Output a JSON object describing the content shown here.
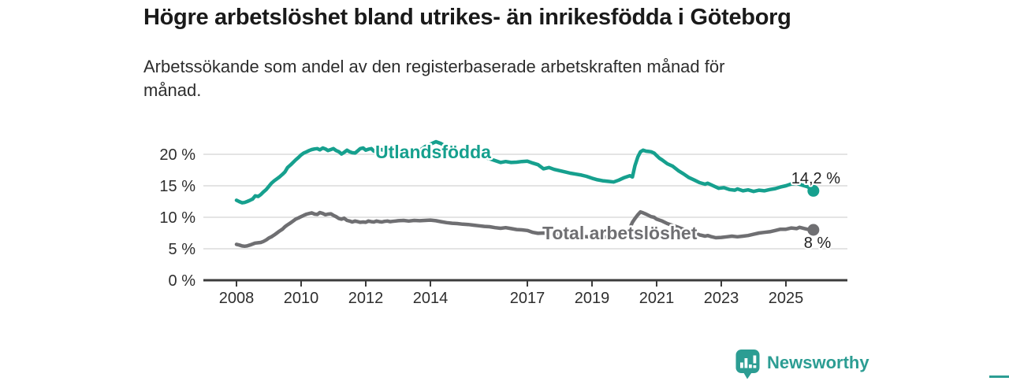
{
  "header": {
    "title": "Högre arbetslöshet bland utrikes- än inrikesfödda i Göteborg",
    "subtitle_line1": "Arbetssökande som andel av den registerbaserade arbetskraften månad för",
    "subtitle_line2": "månad."
  },
  "branding": {
    "logo_text": "Newsworthy",
    "accent_color": "#2C9D93"
  },
  "chart_data": {
    "type": "line",
    "grid": true,
    "legend": "inline-labels",
    "x_axis": {
      "ticks": [
        2008,
        2010,
        2012,
        2014,
        2017,
        2019,
        2021,
        2023,
        2025
      ],
      "range": [
        2007,
        2026.8
      ]
    },
    "y_axis": {
      "ticks": [
        0,
        5,
        10,
        15,
        20
      ],
      "labels": [
        "0 %",
        "5 %",
        "10 %",
        "15 %",
        "20 %"
      ],
      "range": [
        0,
        22
      ],
      "unit": "%"
    },
    "series": [
      {
        "name": "Utlandsfödda",
        "color": "#16A08E",
        "end_label": "14,2 %",
        "end_value": 14.2,
        "points": [
          [
            2008.0,
            12.7
          ],
          [
            2008.08,
            12.5
          ],
          [
            2008.17,
            12.3
          ],
          [
            2008.25,
            12.35
          ],
          [
            2008.33,
            12.5
          ],
          [
            2008.42,
            12.7
          ],
          [
            2008.5,
            12.9
          ],
          [
            2008.58,
            13.4
          ],
          [
            2008.67,
            13.3
          ],
          [
            2008.75,
            13.6
          ],
          [
            2008.83,
            14.0
          ],
          [
            2008.92,
            14.4
          ],
          [
            2009.0,
            14.9
          ],
          [
            2009.08,
            15.4
          ],
          [
            2009.17,
            15.8
          ],
          [
            2009.25,
            16.1
          ],
          [
            2009.33,
            16.4
          ],
          [
            2009.42,
            16.8
          ],
          [
            2009.5,
            17.2
          ],
          [
            2009.58,
            17.9
          ],
          [
            2009.67,
            18.3
          ],
          [
            2009.75,
            18.7
          ],
          [
            2009.83,
            19.1
          ],
          [
            2009.92,
            19.5
          ],
          [
            2010.0,
            19.9
          ],
          [
            2010.08,
            20.2
          ],
          [
            2010.17,
            20.4
          ],
          [
            2010.25,
            20.6
          ],
          [
            2010.33,
            20.75
          ],
          [
            2010.42,
            20.85
          ],
          [
            2010.5,
            20.9
          ],
          [
            2010.58,
            20.7
          ],
          [
            2010.67,
            21.0
          ],
          [
            2010.75,
            20.85
          ],
          [
            2010.83,
            20.6
          ],
          [
            2010.92,
            20.75
          ],
          [
            2011.0,
            20.9
          ],
          [
            2011.08,
            20.6
          ],
          [
            2011.17,
            20.4
          ],
          [
            2011.25,
            20.05
          ],
          [
            2011.33,
            20.3
          ],
          [
            2011.42,
            20.65
          ],
          [
            2011.5,
            20.4
          ],
          [
            2011.58,
            20.25
          ],
          [
            2011.67,
            20.2
          ],
          [
            2011.75,
            20.55
          ],
          [
            2011.83,
            20.9
          ],
          [
            2011.92,
            21.0
          ],
          [
            2012.0,
            20.65
          ],
          [
            2012.08,
            20.8
          ],
          [
            2012.17,
            20.9
          ],
          [
            2012.25,
            20.5
          ],
          [
            2012.33,
            20.4
          ],
          [
            2012.42,
            20.65
          ],
          [
            2012.5,
            20.75
          ],
          [
            2012.58,
            20.5
          ],
          [
            2012.67,
            20.6
          ],
          [
            2012.75,
            20.8
          ],
          [
            2012.83,
            20.7
          ],
          [
            2012.92,
            20.55
          ],
          [
            2013.0,
            20.5
          ],
          [
            2013.17,
            20.65
          ],
          [
            2013.33,
            20.5
          ],
          [
            2013.5,
            20.55
          ],
          [
            2013.67,
            20.6
          ],
          [
            2013.83,
            21.2
          ],
          [
            2014.0,
            21.6
          ],
          [
            2014.17,
            22.0
          ],
          [
            2014.33,
            21.7
          ],
          [
            2014.5,
            21.2
          ],
          [
            2014.67,
            20.8
          ],
          [
            2014.83,
            20.4
          ],
          [
            2015.0,
            20.1
          ],
          [
            2015.17,
            19.95
          ],
          [
            2015.33,
            19.8
          ],
          [
            2015.5,
            19.65
          ],
          [
            2015.67,
            19.5
          ],
          [
            2015.83,
            19.3
          ],
          [
            2016.0,
            19.0
          ],
          [
            2016.17,
            18.7
          ],
          [
            2016.33,
            18.85
          ],
          [
            2016.5,
            18.7
          ],
          [
            2016.67,
            18.75
          ],
          [
            2016.83,
            18.85
          ],
          [
            2017.0,
            18.9
          ],
          [
            2017.17,
            18.6
          ],
          [
            2017.33,
            18.35
          ],
          [
            2017.5,
            17.7
          ],
          [
            2017.67,
            17.9
          ],
          [
            2017.83,
            17.6
          ],
          [
            2018.0,
            17.4
          ],
          [
            2018.17,
            17.2
          ],
          [
            2018.33,
            17.0
          ],
          [
            2018.5,
            16.85
          ],
          [
            2018.67,
            16.7
          ],
          [
            2018.83,
            16.5
          ],
          [
            2019.0,
            16.2
          ],
          [
            2019.17,
            15.95
          ],
          [
            2019.33,
            15.8
          ],
          [
            2019.5,
            15.7
          ],
          [
            2019.67,
            15.6
          ],
          [
            2019.83,
            15.9
          ],
          [
            2020.0,
            16.3
          ],
          [
            2020.17,
            16.6
          ],
          [
            2020.25,
            16.4
          ],
          [
            2020.33,
            18.2
          ],
          [
            2020.42,
            19.6
          ],
          [
            2020.5,
            20.4
          ],
          [
            2020.58,
            20.65
          ],
          [
            2020.67,
            20.5
          ],
          [
            2020.75,
            20.45
          ],
          [
            2020.83,
            20.4
          ],
          [
            2020.92,
            20.2
          ],
          [
            2021.0,
            19.8
          ],
          [
            2021.08,
            19.4
          ],
          [
            2021.17,
            19.1
          ],
          [
            2021.33,
            18.5
          ],
          [
            2021.5,
            18.1
          ],
          [
            2021.67,
            17.4
          ],
          [
            2021.83,
            16.9
          ],
          [
            2022.0,
            16.3
          ],
          [
            2022.17,
            15.9
          ],
          [
            2022.33,
            15.5
          ],
          [
            2022.5,
            15.25
          ],
          [
            2022.58,
            15.4
          ],
          [
            2022.75,
            15.0
          ],
          [
            2022.92,
            14.6
          ],
          [
            2023.08,
            14.7
          ],
          [
            2023.25,
            14.4
          ],
          [
            2023.42,
            14.3
          ],
          [
            2023.5,
            14.5
          ],
          [
            2023.67,
            14.2
          ],
          [
            2023.83,
            14.35
          ],
          [
            2024.0,
            14.1
          ],
          [
            2024.17,
            14.3
          ],
          [
            2024.33,
            14.2
          ],
          [
            2024.5,
            14.4
          ],
          [
            2024.67,
            14.55
          ],
          [
            2024.83,
            14.8
          ],
          [
            2025.0,
            15.0
          ],
          [
            2025.17,
            15.3
          ],
          [
            2025.33,
            15.4
          ],
          [
            2025.5,
            15.1
          ],
          [
            2025.67,
            14.85
          ],
          [
            2025.78,
            14.5
          ],
          [
            2025.85,
            14.2
          ]
        ]
      },
      {
        "name": "Total arbetslöshet",
        "color": "#6F6F72",
        "end_label": "8 %",
        "end_value": 8,
        "points": [
          [
            2008.0,
            5.7
          ],
          [
            2008.08,
            5.6
          ],
          [
            2008.17,
            5.45
          ],
          [
            2008.25,
            5.4
          ],
          [
            2008.33,
            5.45
          ],
          [
            2008.42,
            5.6
          ],
          [
            2008.5,
            5.75
          ],
          [
            2008.58,
            5.9
          ],
          [
            2008.67,
            5.95
          ],
          [
            2008.75,
            6.0
          ],
          [
            2008.83,
            6.15
          ],
          [
            2008.92,
            6.4
          ],
          [
            2009.0,
            6.7
          ],
          [
            2009.08,
            6.9
          ],
          [
            2009.17,
            7.2
          ],
          [
            2009.25,
            7.5
          ],
          [
            2009.33,
            7.8
          ],
          [
            2009.42,
            8.1
          ],
          [
            2009.5,
            8.5
          ],
          [
            2009.58,
            8.8
          ],
          [
            2009.67,
            9.1
          ],
          [
            2009.75,
            9.4
          ],
          [
            2009.83,
            9.7
          ],
          [
            2009.92,
            9.9
          ],
          [
            2010.0,
            10.1
          ],
          [
            2010.08,
            10.3
          ],
          [
            2010.17,
            10.5
          ],
          [
            2010.25,
            10.6
          ],
          [
            2010.33,
            10.7
          ],
          [
            2010.42,
            10.5
          ],
          [
            2010.5,
            10.45
          ],
          [
            2010.58,
            10.75
          ],
          [
            2010.67,
            10.6
          ],
          [
            2010.75,
            10.4
          ],
          [
            2010.83,
            10.5
          ],
          [
            2010.92,
            10.55
          ],
          [
            2011.0,
            10.3
          ],
          [
            2011.08,
            10.1
          ],
          [
            2011.17,
            9.8
          ],
          [
            2011.25,
            9.7
          ],
          [
            2011.33,
            9.85
          ],
          [
            2011.42,
            9.5
          ],
          [
            2011.5,
            9.4
          ],
          [
            2011.58,
            9.25
          ],
          [
            2011.67,
            9.4
          ],
          [
            2011.75,
            9.3
          ],
          [
            2011.83,
            9.2
          ],
          [
            2011.92,
            9.25
          ],
          [
            2012.0,
            9.2
          ],
          [
            2012.08,
            9.4
          ],
          [
            2012.17,
            9.3
          ],
          [
            2012.25,
            9.25
          ],
          [
            2012.33,
            9.4
          ],
          [
            2012.42,
            9.3
          ],
          [
            2012.5,
            9.25
          ],
          [
            2012.58,
            9.35
          ],
          [
            2012.67,
            9.4
          ],
          [
            2012.75,
            9.3
          ],
          [
            2012.83,
            9.35
          ],
          [
            2012.92,
            9.4
          ],
          [
            2013.0,
            9.45
          ],
          [
            2013.17,
            9.5
          ],
          [
            2013.33,
            9.4
          ],
          [
            2013.5,
            9.5
          ],
          [
            2013.67,
            9.45
          ],
          [
            2013.83,
            9.5
          ],
          [
            2014.0,
            9.55
          ],
          [
            2014.17,
            9.45
          ],
          [
            2014.33,
            9.3
          ],
          [
            2014.5,
            9.15
          ],
          [
            2014.67,
            9.05
          ],
          [
            2014.83,
            9.0
          ],
          [
            2015.0,
            8.9
          ],
          [
            2015.17,
            8.85
          ],
          [
            2015.33,
            8.75
          ],
          [
            2015.5,
            8.65
          ],
          [
            2015.67,
            8.55
          ],
          [
            2015.83,
            8.5
          ],
          [
            2016.0,
            8.35
          ],
          [
            2016.17,
            8.25
          ],
          [
            2016.33,
            8.35
          ],
          [
            2016.5,
            8.2
          ],
          [
            2016.67,
            8.05
          ],
          [
            2016.83,
            8.0
          ],
          [
            2017.0,
            7.9
          ],
          [
            2017.17,
            7.6
          ],
          [
            2017.33,
            7.45
          ],
          [
            2017.5,
            7.5
          ],
          [
            2017.67,
            7.4
          ],
          [
            2017.83,
            7.35
          ],
          [
            2018.0,
            7.25
          ],
          [
            2018.17,
            7.15
          ],
          [
            2018.33,
            7.1
          ],
          [
            2018.5,
            7.0
          ],
          [
            2018.67,
            7.0
          ],
          [
            2018.83,
            6.9
          ],
          [
            2019.0,
            6.85
          ],
          [
            2019.17,
            6.8
          ],
          [
            2019.33,
            6.85
          ],
          [
            2019.5,
            6.9
          ],
          [
            2019.67,
            7.0
          ],
          [
            2019.83,
            7.15
          ],
          [
            2020.0,
            7.5
          ],
          [
            2020.17,
            8.3
          ],
          [
            2020.25,
            9.2
          ],
          [
            2020.33,
            9.8
          ],
          [
            2020.42,
            10.4
          ],
          [
            2020.5,
            10.85
          ],
          [
            2020.58,
            10.7
          ],
          [
            2020.67,
            10.5
          ],
          [
            2020.75,
            10.3
          ],
          [
            2020.83,
            10.1
          ],
          [
            2020.92,
            10.0
          ],
          [
            2021.0,
            9.7
          ],
          [
            2021.17,
            9.4
          ],
          [
            2021.33,
            9.0
          ],
          [
            2021.5,
            8.7
          ],
          [
            2021.67,
            8.4
          ],
          [
            2021.83,
            8.1
          ],
          [
            2022.0,
            7.8
          ],
          [
            2022.17,
            7.5
          ],
          [
            2022.33,
            7.2
          ],
          [
            2022.5,
            7.0
          ],
          [
            2022.58,
            7.1
          ],
          [
            2022.67,
            6.95
          ],
          [
            2022.83,
            6.75
          ],
          [
            2023.0,
            6.8
          ],
          [
            2023.17,
            6.9
          ],
          [
            2023.33,
            7.0
          ],
          [
            2023.5,
            6.9
          ],
          [
            2023.67,
            7.0
          ],
          [
            2023.83,
            7.1
          ],
          [
            2024.0,
            7.3
          ],
          [
            2024.17,
            7.5
          ],
          [
            2024.33,
            7.6
          ],
          [
            2024.5,
            7.7
          ],
          [
            2024.67,
            7.9
          ],
          [
            2024.83,
            8.1
          ],
          [
            2025.0,
            8.1
          ],
          [
            2025.17,
            8.3
          ],
          [
            2025.33,
            8.2
          ],
          [
            2025.42,
            8.4
          ],
          [
            2025.58,
            8.2
          ],
          [
            2025.7,
            8.05
          ],
          [
            2025.85,
            8.0
          ]
        ]
      }
    ]
  }
}
